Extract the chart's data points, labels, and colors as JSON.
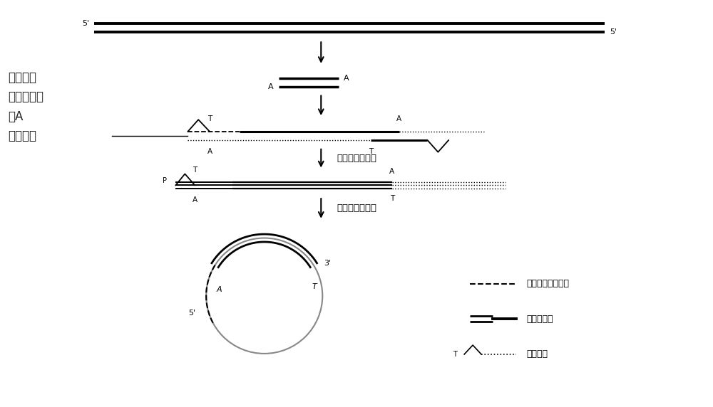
{
  "bg_color": "#ffffff",
  "text_color": "#1a1a1a",
  "label_step1_lines": [
    "片段化，",
    "末端修复，",
    "加A"
  ],
  "label_jietou": "接头连接",
  "label_citie": "磁珠纯化，定量",
  "label_shuanglian": "双镰变性，环化",
  "legend1_text": "接头上的标签序列",
  "legend2_text": "介导桦序列",
  "legend3_text": "接头序列"
}
